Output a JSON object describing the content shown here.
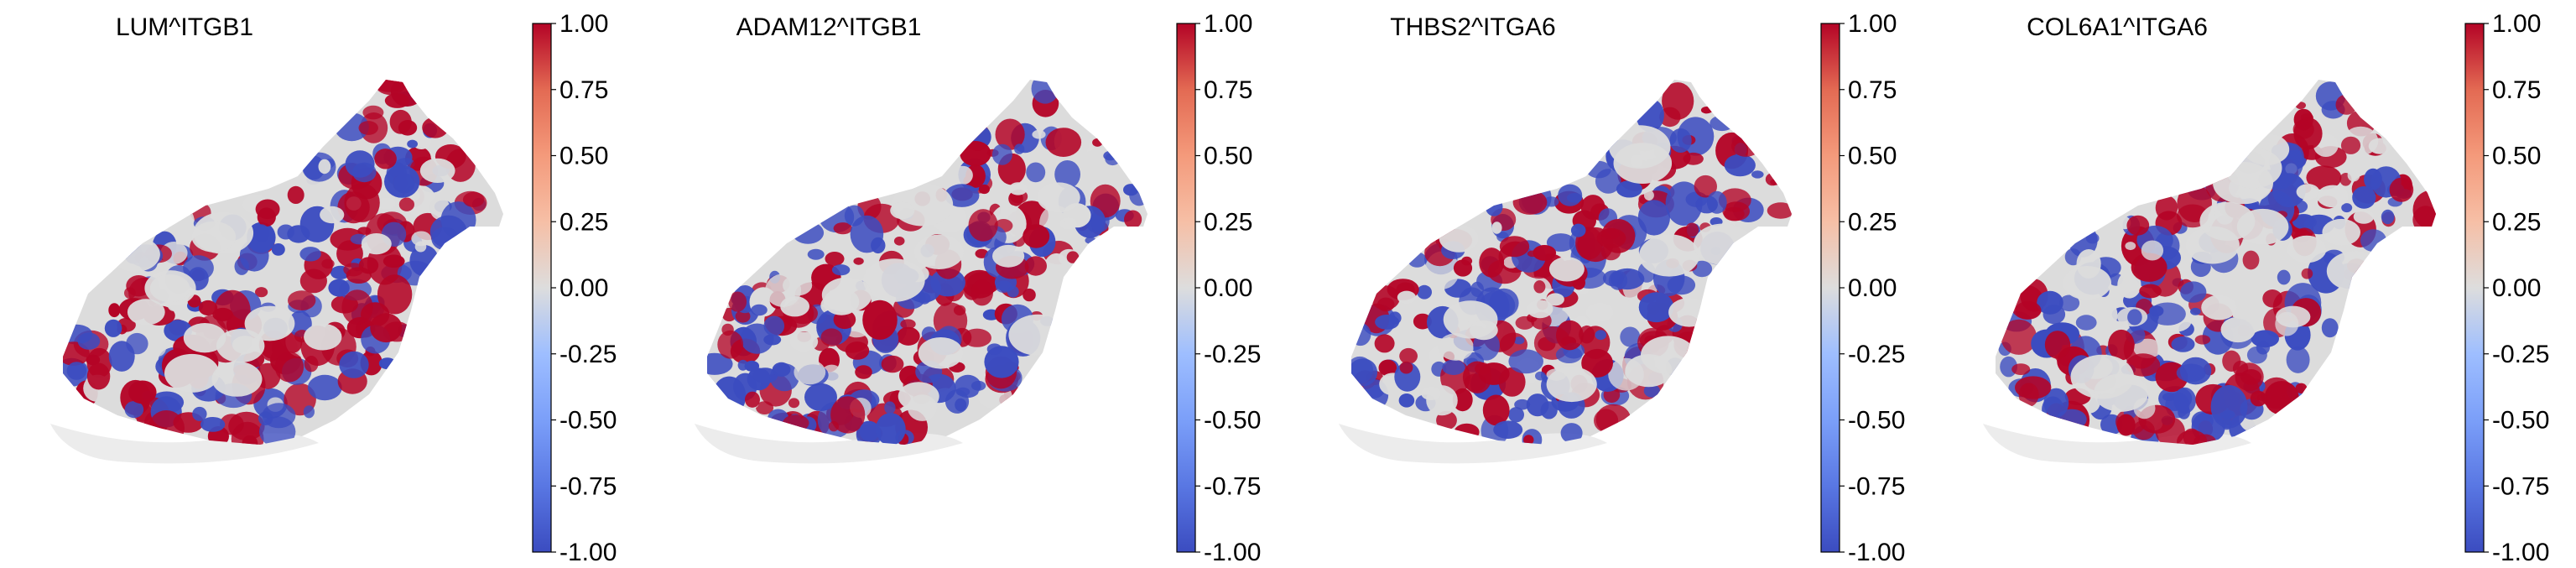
{
  "chart_data": [
    {
      "type": "spatial-scatter",
      "title": "LUM^ITGB1",
      "colormap": "coolwarm",
      "colorbar": {
        "vmin": -1.0,
        "vmax": 1.0,
        "ticks": [
          "1.00",
          "0.75",
          "0.50",
          "0.25",
          "0.00",
          "-0.25",
          "-0.50",
          "-0.75",
          "-1.00"
        ]
      },
      "legend": "none",
      "grid": false,
      "axes_visible": false
    },
    {
      "type": "spatial-scatter",
      "title": "ADAM12^ITGB1",
      "colormap": "coolwarm",
      "colorbar": {
        "vmin": -1.0,
        "vmax": 1.0,
        "ticks": [
          "1.00",
          "0.75",
          "0.50",
          "0.25",
          "0.00",
          "-0.25",
          "-0.50",
          "-0.75",
          "-1.00"
        ]
      },
      "legend": "none",
      "grid": false,
      "axes_visible": false
    },
    {
      "type": "spatial-scatter",
      "title": "THBS2^ITGA6",
      "colormap": "coolwarm",
      "colorbar": {
        "vmin": -1.0,
        "vmax": 1.0,
        "ticks": [
          "1.00",
          "0.75",
          "0.50",
          "0.25",
          "0.00",
          "-0.25",
          "-0.50",
          "-0.75",
          "-1.00"
        ]
      },
      "legend": "none",
      "grid": false,
      "axes_visible": false
    },
    {
      "type": "spatial-scatter",
      "title": "COL6A1^ITGA6",
      "colormap": "coolwarm",
      "colorbar": {
        "vmin": -1.0,
        "vmax": 1.0,
        "ticks": [
          "1.00",
          "0.75",
          "0.50",
          "0.25",
          "0.00",
          "-0.25",
          "-0.50",
          "-0.75",
          "-1.00"
        ]
      },
      "legend": "none",
      "grid": false,
      "axes_visible": false
    }
  ],
  "colors": {
    "high": "#b40426",
    "mid": "#dddddd",
    "low": "#3b4cc0",
    "background_tissue": "#dcdcdc"
  }
}
